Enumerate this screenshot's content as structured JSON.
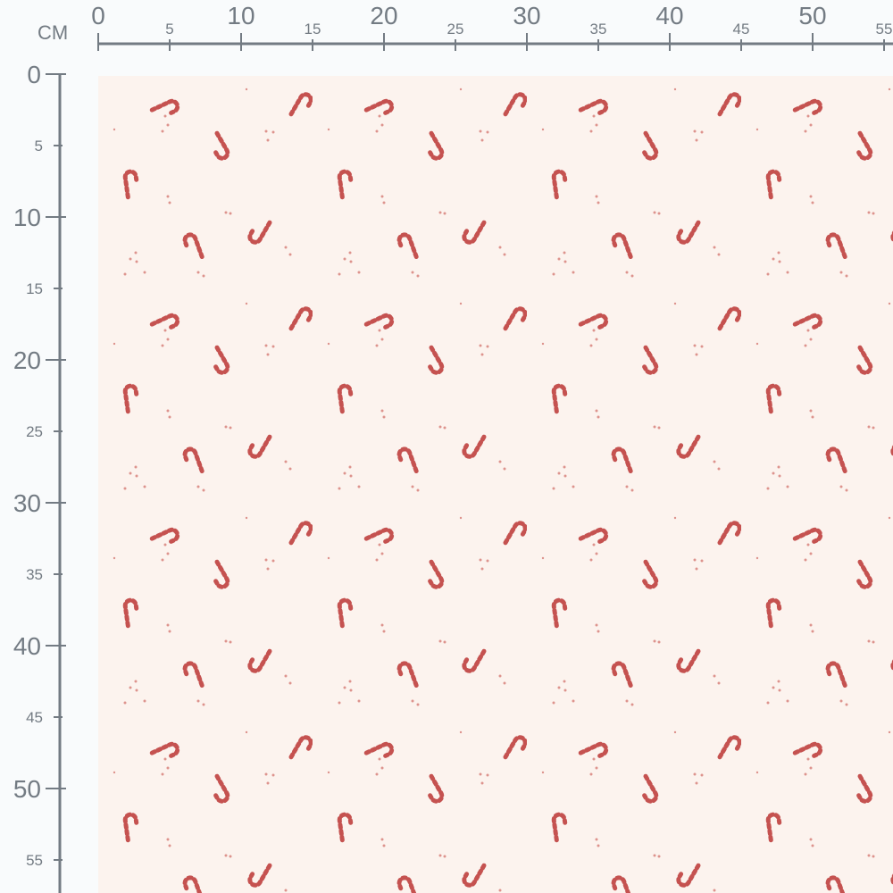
{
  "ruler": {
    "unit": "CM",
    "horizontal_labels": [
      "0",
      "5",
      "10",
      "15",
      "20",
      "25",
      "30",
      "35",
      "40",
      "45",
      "50",
      "55"
    ],
    "vertical_labels": [
      "0",
      "5",
      "10",
      "15",
      "20",
      "25",
      "30",
      "35",
      "40",
      "45",
      "50",
      "55"
    ],
    "color": "#737b83"
  },
  "fabric": {
    "pattern": "candy canes",
    "background_color": "#fcf3ee",
    "cane_color": "#c0423f"
  }
}
